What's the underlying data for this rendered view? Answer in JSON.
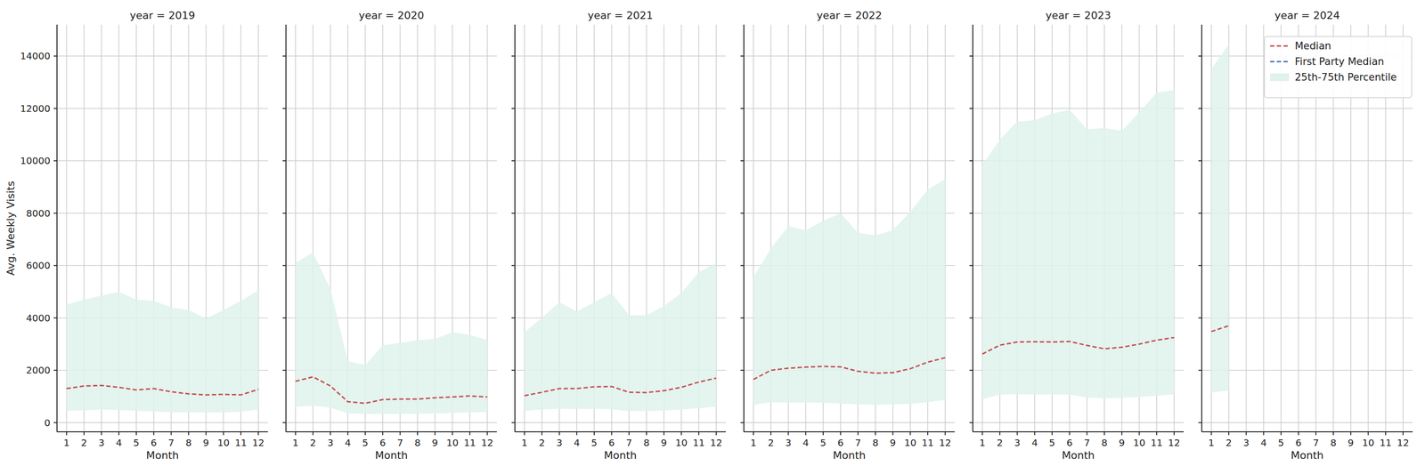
{
  "chart_data": {
    "type": "line",
    "x_label": "Month",
    "y_label": "Avg. Weekly Visits",
    "panels": [
      "year = 2019",
      "year = 2020",
      "year = 2021",
      "year = 2022",
      "year = 2023",
      "year = 2024"
    ],
    "x": [
      1,
      2,
      3,
      4,
      5,
      6,
      7,
      8,
      9,
      10,
      11,
      12
    ],
    "xlim": [
      0.45,
      12.55
    ],
    "xticks": [
      1,
      2,
      3,
      4,
      5,
      6,
      7,
      8,
      9,
      10,
      11,
      12
    ],
    "ylim": [
      -350,
      15200
    ],
    "yticks": [
      0,
      2000,
      4000,
      6000,
      8000,
      10000,
      12000,
      14000
    ],
    "grid": true,
    "legend": "upper right",
    "series": [
      {
        "name": "Median",
        "color": "#c44e52",
        "line_style": "dashed",
        "values": [
          [
            1300,
            1400,
            1420,
            1350,
            1250,
            1300,
            1180,
            1100,
            1060,
            1080,
            1060,
            1270
          ],
          [
            1580,
            1750,
            1400,
            800,
            740,
            880,
            900,
            900,
            950,
            980,
            1020,
            980
          ],
          [
            1030,
            1160,
            1300,
            1300,
            1370,
            1380,
            1160,
            1150,
            1220,
            1350,
            1550,
            1700
          ],
          [
            1650,
            2000,
            2080,
            2120,
            2150,
            2130,
            1960,
            1890,
            1910,
            2060,
            2310,
            2480
          ],
          [
            2620,
            2960,
            3080,
            3090,
            3080,
            3100,
            2950,
            2820,
            2880,
            3000,
            3150,
            3250
          ],
          [
            3480,
            3700,
            null,
            null,
            null,
            null,
            null,
            null,
            null,
            null,
            null,
            null
          ]
        ]
      },
      {
        "name": "First Party Median",
        "color": "#4c72b0",
        "line_style": "dashed",
        "values": [
          [
            null,
            null,
            null,
            null,
            null,
            null,
            null,
            null,
            null,
            null,
            null,
            null
          ],
          [
            null,
            null,
            null,
            null,
            null,
            null,
            null,
            null,
            null,
            null,
            null,
            null
          ],
          [
            null,
            null,
            null,
            null,
            null,
            null,
            null,
            null,
            null,
            null,
            null,
            null
          ],
          [
            null,
            null,
            null,
            null,
            null,
            null,
            null,
            null,
            null,
            null,
            null,
            null
          ],
          [
            null,
            null,
            null,
            null,
            null,
            null,
            null,
            null,
            null,
            null,
            null,
            null
          ],
          [
            null,
            null,
            null,
            null,
            null,
            null,
            null,
            null,
            null,
            null,
            null,
            null
          ]
        ]
      },
      {
        "name": "25th-75th Percentile",
        "type": "area",
        "color": "#dff2ec",
        "lower": [
          [
            450,
            470,
            500,
            480,
            450,
            430,
            400,
            390,
            390,
            390,
            420,
            500
          ],
          [
            600,
            650,
            580,
            350,
            330,
            340,
            340,
            340,
            350,
            370,
            400,
            400
          ],
          [
            450,
            500,
            530,
            530,
            530,
            510,
            440,
            440,
            460,
            500,
            550,
            620
          ],
          [
            680,
            780,
            770,
            770,
            760,
            730,
            700,
            680,
            700,
            720,
            780,
            870
          ],
          [
            900,
            1070,
            1090,
            1070,
            1080,
            1070,
            960,
            930,
            950,
            980,
            1030,
            1080
          ],
          [
            1150,
            1230,
            null,
            null,
            null,
            null,
            null,
            null,
            null,
            null,
            null,
            null
          ]
        ],
        "upper": [
          [
            4500,
            4700,
            4850,
            5000,
            4700,
            4650,
            4400,
            4300,
            3980,
            4300,
            4650,
            5050
          ],
          [
            6100,
            6500,
            5100,
            2350,
            2200,
            2950,
            3050,
            3150,
            3200,
            3450,
            3350,
            3150
          ],
          [
            3450,
            4000,
            4600,
            4250,
            4600,
            4950,
            4100,
            4100,
            4450,
            4950,
            5750,
            6100
          ],
          [
            5550,
            6650,
            7500,
            7350,
            7700,
            8000,
            7250,
            7150,
            7350,
            8050,
            8900,
            9300
          ],
          [
            9850,
            10800,
            11500,
            11550,
            11800,
            11950,
            11200,
            11250,
            11150,
            11850,
            12600,
            12700
          ],
          [
            13500,
            14450,
            null,
            null,
            null,
            null,
            null,
            null,
            null,
            null,
            null,
            null
          ]
        ]
      }
    ]
  }
}
